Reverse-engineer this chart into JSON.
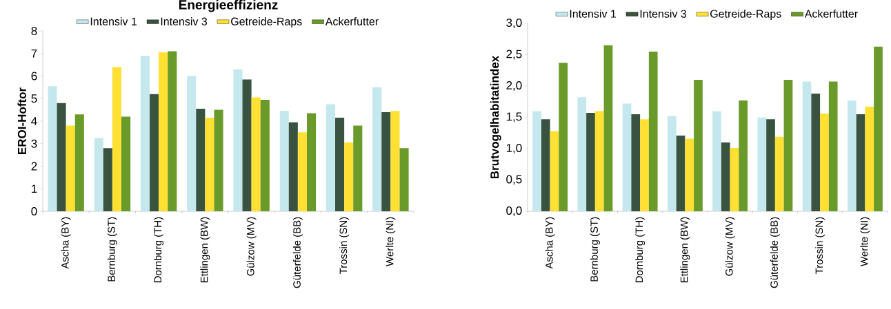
{
  "chart_data": [
    {
      "type": "bar",
      "title": "Energieeffizienz",
      "ylabel": "EROI-Hoftor",
      "categories": [
        "Ascha (BY)",
        "Bernburg (ST)",
        "Dornburg (TH)",
        "Ettlingen (BW)",
        "Gülzow (MV)",
        "Güterfelde (BB)",
        "Trossin (SN)",
        "Werlte (NI)"
      ],
      "series": [
        {
          "name": "Intensiv 1",
          "color": "#c5e8ee",
          "values": [
            5.55,
            3.25,
            6.9,
            6.0,
            6.3,
            4.45,
            4.75,
            5.5
          ]
        },
        {
          "name": "Intensiv 3",
          "color": "#3a5340",
          "values": [
            4.8,
            2.8,
            5.2,
            4.55,
            5.85,
            3.95,
            4.15,
            4.4
          ]
        },
        {
          "name": "Getreide-Raps",
          "color": "#ffe033",
          "values": [
            3.8,
            6.4,
            7.05,
            4.15,
            5.05,
            3.5,
            3.05,
            4.45
          ]
        },
        {
          "name": "Ackerfutter",
          "color": "#6a9a2a",
          "values": [
            4.3,
            4.2,
            7.1,
            4.5,
            4.95,
            4.35,
            3.8,
            2.8
          ]
        }
      ],
      "ylim": [
        0,
        8
      ],
      "yticks": [
        0,
        1,
        2,
        3,
        4,
        5,
        6,
        7,
        8
      ],
      "legend": "top"
    },
    {
      "type": "bar",
      "ylabel": "Brutvogelhabitatindex",
      "categories": [
        "Ascha (BY)",
        "Bernburg (ST)",
        "Dornburg (TH)",
        "Ettlingen (BW)",
        "Gülzow (MV)",
        "Güterfelde (BB)",
        "Trossin (SN)",
        "Werlte (NI)"
      ],
      "series": [
        {
          "name": "Intensiv 1",
          "color": "#c5e8ee",
          "values": [
            1.6,
            1.82,
            1.72,
            1.52,
            1.6,
            1.5,
            2.07,
            1.77
          ]
        },
        {
          "name": "Intensiv 3",
          "color": "#3a5340",
          "values": [
            1.47,
            1.57,
            1.55,
            1.21,
            1.1,
            1.47,
            1.88,
            1.55
          ]
        },
        {
          "name": "Getreide-Raps",
          "color": "#ffe033",
          "values": [
            1.28,
            1.6,
            1.47,
            1.16,
            1.01,
            1.19,
            1.56,
            1.67
          ]
        },
        {
          "name": "Ackerfutter",
          "color": "#6a9a2a",
          "values": [
            2.37,
            2.65,
            2.55,
            2.1,
            1.77,
            2.1,
            2.07,
            2.63
          ]
        }
      ],
      "ylim": [
        0,
        3
      ],
      "yticks": [
        {
          "value": 0,
          "label": "0,0"
        },
        {
          "value": 0.5,
          "label": "0,5"
        },
        {
          "value": 1,
          "label": "1,0"
        },
        {
          "value": 1.5,
          "label": "1,5"
        },
        {
          "value": 2,
          "label": "2,0"
        },
        {
          "value": 2.5,
          "label": "2,5"
        },
        {
          "value": 3,
          "label": "3,0"
        }
      ],
      "legend": "top"
    }
  ]
}
